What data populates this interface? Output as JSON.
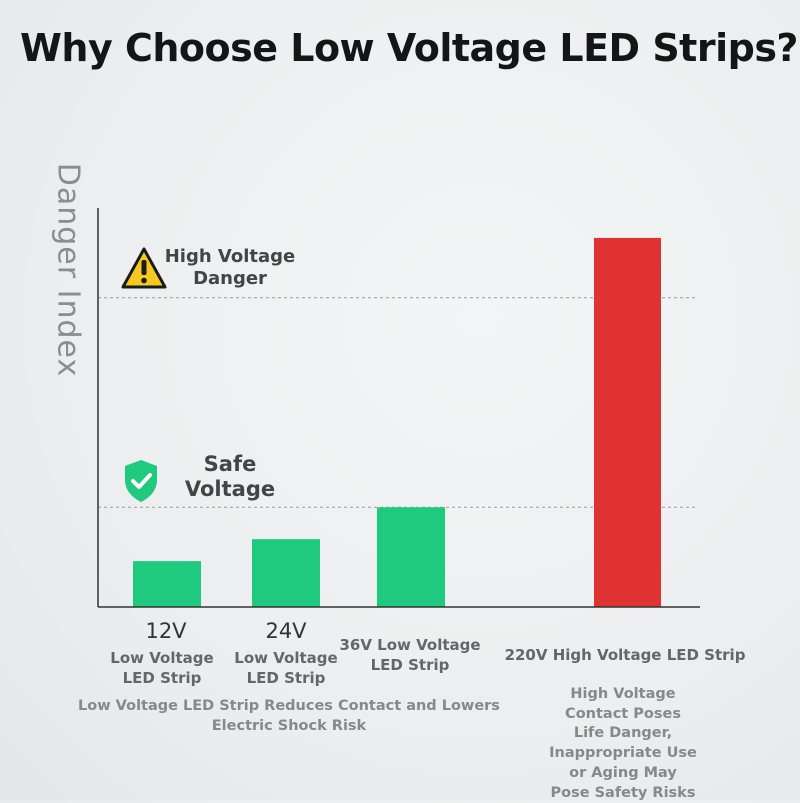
{
  "title": "Why Choose Low Voltage LED Strips?",
  "chart_data": {
    "type": "bar",
    "ylabel": "Danger Index",
    "categories": [
      "12V",
      "24V",
      "36V Low Voltage LED Strip",
      "220V High Voltage LED Strip"
    ],
    "tick_labels": [
      "12V",
      "24V",
      "",
      ""
    ],
    "category_labels": [
      "Low Voltage LED Strip",
      "Low Voltage LED Strip",
      "36V Low Voltage LED Strip",
      "220V High Voltage LED Strip"
    ],
    "values": [
      0.115,
      0.17,
      0.25,
      0.925
    ],
    "ylim": [
      0,
      1
    ],
    "bar_colors": [
      "#1fca7e",
      "#1fca7e",
      "#1fca7e",
      "#e03232"
    ],
    "reference_lines": [
      {
        "label": "High Voltage Danger",
        "value": 0.775
      },
      {
        "label": "Safe Voltage",
        "value": 0.25
      }
    ],
    "annotations": {
      "high_voltage_marker": "High Voltage Danger",
      "safe_marker": "Safe Voltage",
      "low_voltage_note": "Low Voltage LED Strip Reduces Contact and Lowers Electric Shock Risk",
      "high_voltage_note": "High Voltage Contact Poses Life Danger, Inappropriate Use or Aging May Pose Safety Risks"
    },
    "grid": false
  },
  "icons": {
    "warning": "warning-triangle-icon",
    "safe": "shield-check-icon"
  },
  "colors": {
    "safe_green": "#1fca7e",
    "danger_red": "#e03232",
    "warning_yellow": "#f7c81e"
  }
}
